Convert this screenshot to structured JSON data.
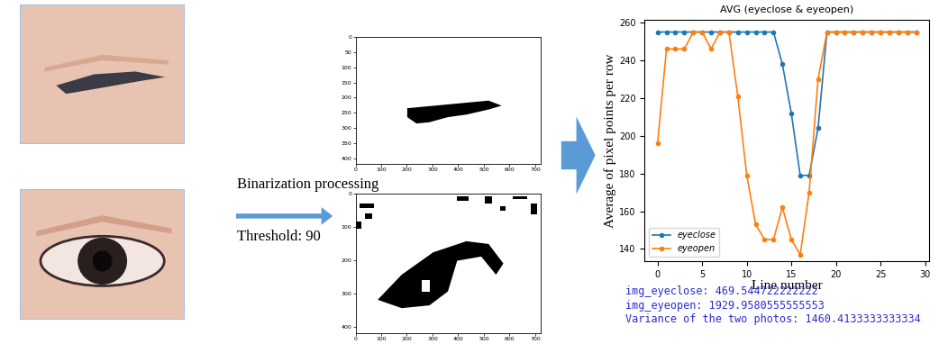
{
  "process": {
    "label": "Binarization processing",
    "threshold_label": "Threshold: 90"
  },
  "binarized_images": [
    {
      "xlim": [
        0,
        720
      ],
      "ylim": [
        420,
        0
      ],
      "xticks": [
        0,
        100,
        200,
        300,
        400,
        500,
        600,
        700
      ],
      "yticks": [
        0,
        50,
        100,
        150,
        200,
        250,
        300,
        350,
        400
      ]
    },
    {
      "xlim": [
        0,
        720
      ],
      "ylim": [
        420,
        0
      ],
      "xticks": [
        0,
        100,
        200,
        300,
        400,
        500,
        600,
        700
      ],
      "yticks": [
        0,
        100,
        200,
        300,
        400
      ]
    }
  ],
  "chart_data": {
    "type": "line",
    "title": "AVG (eyeclose & eyeopen)",
    "x_label": "Line number",
    "y_label": "Average of pixel points per row",
    "x": [
      0,
      1,
      2,
      3,
      4,
      5,
      6,
      7,
      8,
      9,
      10,
      11,
      12,
      13,
      14,
      15,
      16,
      17,
      18,
      19,
      20,
      21,
      22,
      23,
      24,
      25,
      26,
      27,
      28,
      29
    ],
    "series": [
      {
        "name": "eyeclose",
        "color": "#1f77b4",
        "values": [
          255,
          255,
          255,
          255,
          255,
          255,
          255,
          255,
          255,
          255,
          255,
          255,
          255,
          255,
          238,
          212,
          179,
          179,
          204,
          255,
          255,
          255,
          255,
          255,
          255,
          255,
          255,
          255,
          255,
          255
        ]
      },
      {
        "name": "eyeopen",
        "color": "#ff7f0e",
        "values": [
          196,
          246,
          246,
          246,
          255,
          255,
          246,
          255,
          255,
          221,
          179,
          153,
          145,
          145,
          162,
          145,
          137,
          170,
          230,
          255,
          255,
          255,
          255,
          255,
          255,
          255,
          255,
          255,
          255,
          255
        ]
      }
    ],
    "marker": "o",
    "xlim": [
      -1.45,
      30.45
    ],
    "ylim": [
      133.5,
      261.5
    ],
    "xticks": [
      0,
      5,
      10,
      15,
      20,
      25,
      30
    ],
    "yticks": [
      140,
      160,
      180,
      200,
      220,
      240,
      260
    ],
    "legend": "lower left"
  },
  "output_text": [
    "img_eyeclose: 469.544722222222",
    "img_eyeopen: 1929.9580555555553",
    "Variance of the two photos: 1460.4133333333334"
  ]
}
